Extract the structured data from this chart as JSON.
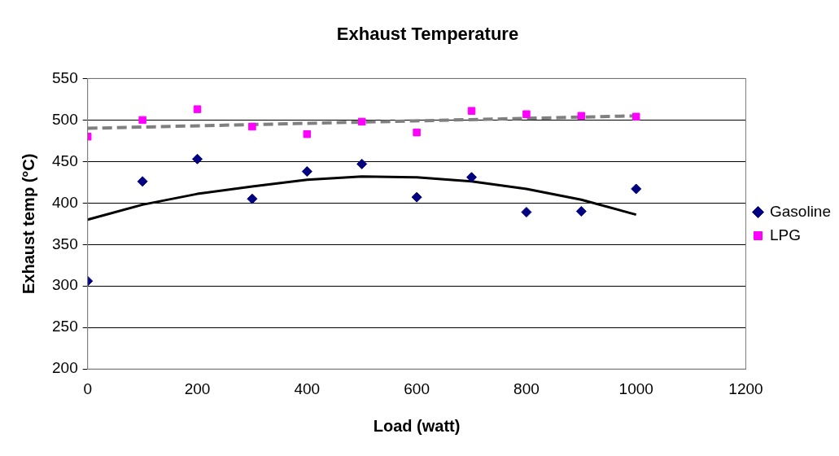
{
  "chart_data": {
    "type": "scatter",
    "title": "Exhaust Temperature",
    "xlabel": "Load (watt)",
    "ylabel": "Exhaust temp (°C)",
    "x": [
      0,
      100,
      200,
      300,
      400,
      500,
      600,
      700,
      800,
      900,
      1000
    ],
    "series": [
      {
        "name": "Gasoline",
        "color": "#000080",
        "marker": "diamond",
        "values": [
          306,
          426,
          453,
          405,
          438,
          447,
          407,
          431,
          389,
          390,
          417
        ]
      },
      {
        "name": "LPG",
        "color": "#ff00ff",
        "marker": "square",
        "values": [
          480,
          500,
          513,
          492,
          483,
          498,
          485,
          511,
          507,
          505,
          504
        ]
      },
      {
        "type": "line",
        "color": "#000000",
        "marker": "none",
        "line_style": "solid",
        "x": [
          0,
          100,
          200,
          300,
          400,
          500,
          600,
          700,
          800,
          900,
          1000
        ],
        "values": [
          380,
          398,
          411,
          420,
          428,
          432,
          431,
          426,
          417,
          404,
          386
        ]
      },
      {
        "type": "line",
        "color": "#808080",
        "marker": "none",
        "line_style": "dashed",
        "x": [
          0,
          1000
        ],
        "values": [
          490,
          505
        ]
      }
    ],
    "xlim": [
      0,
      1200
    ],
    "xticks": [
      0,
      200,
      400,
      600,
      800,
      1000,
      1200
    ],
    "ylim": [
      200,
      550
    ],
    "yticks": [
      200,
      250,
      300,
      350,
      400,
      450,
      500,
      550
    ],
    "grid": "y",
    "legend": "right"
  }
}
